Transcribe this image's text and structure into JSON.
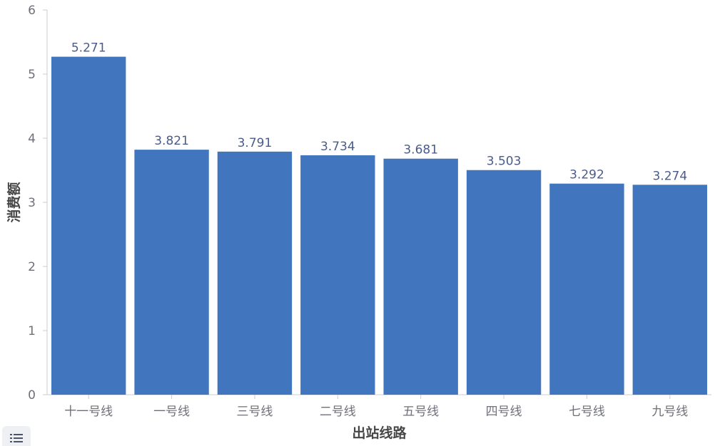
{
  "chart_data": {
    "type": "bar",
    "categories": [
      "十一号线",
      "一号线",
      "三号线",
      "二号线",
      "五号线",
      "四号线",
      "七号线",
      "九号线"
    ],
    "values": [
      5.271,
      3.821,
      3.791,
      3.734,
      3.681,
      3.503,
      3.292,
      3.274
    ],
    "data_labels": [
      "5.271",
      "3.821",
      "3.791",
      "3.734",
      "3.681",
      "3.503",
      "3.292",
      "3.274"
    ],
    "xlabel": "出站线路",
    "ylabel": "消费额",
    "ylim": [
      0,
      6
    ],
    "yticks": [
      0,
      1,
      2,
      3,
      4,
      5,
      6
    ],
    "grid": false,
    "bar_color": "#4176bf"
  },
  "legend_toggle": {
    "icon": "list-icon"
  }
}
